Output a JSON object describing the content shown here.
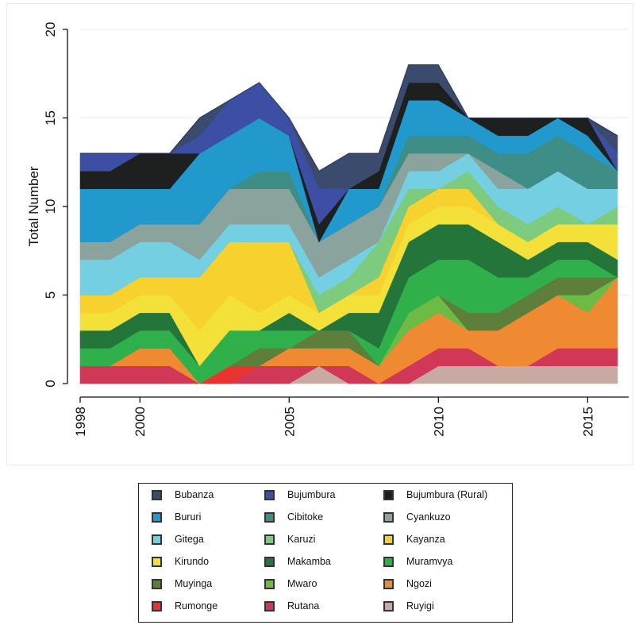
{
  "chart_data": {
    "type": "area",
    "stacked": true,
    "ylabel": "Total Number",
    "xlabel": "",
    "xlim": [
      1998,
      2016
    ],
    "ylim": [
      0,
      20
    ],
    "yticks": [
      0,
      5,
      10,
      15,
      20
    ],
    "xticks": [
      1998,
      2000,
      2005,
      2010,
      2015
    ],
    "grid": true,
    "legend_position": "bottom",
    "x": [
      1998,
      1999,
      2000,
      2001,
      2002,
      2003,
      2004,
      2005,
      2006,
      2007,
      2008,
      2009,
      2010,
      2011,
      2012,
      2013,
      2014,
      2015,
      2016
    ],
    "series": [
      {
        "name": "Ruyigi",
        "color": "#c9aaa3",
        "values": [
          0,
          0,
          0,
          0,
          0,
          0,
          0,
          0,
          1,
          0,
          0,
          0,
          1,
          1,
          1,
          1,
          1,
          1,
          1
        ]
      },
      {
        "name": "Rutana",
        "color": "#d13857",
        "values": [
          1,
          1,
          1,
          1,
          0,
          0,
          1,
          1,
          0,
          1,
          0,
          1,
          1,
          1,
          0,
          0,
          1,
          1,
          1
        ]
      },
      {
        "name": "Rumonge",
        "color": "#e8332e",
        "values": [
          0,
          0,
          0,
          0,
          0,
          1,
          0,
          0,
          0,
          0,
          0,
          0,
          0,
          0,
          0,
          0,
          0,
          0,
          0
        ]
      },
      {
        "name": "Ngozi",
        "color": "#f08a32",
        "values": [
          0,
          0,
          1,
          1,
          0,
          0,
          0,
          1,
          1,
          1,
          1,
          2,
          2,
          1,
          2,
          3,
          3,
          2,
          4
        ]
      },
      {
        "name": "Mwaro",
        "color": "#6bbb44",
        "values": [
          0,
          0,
          0,
          0,
          0,
          0,
          0,
          0,
          0,
          0,
          0,
          1,
          1,
          0,
          0,
          0,
          0,
          1,
          0
        ]
      },
      {
        "name": "Muyinga",
        "color": "#5e7f3c",
        "values": [
          0,
          0,
          0,
          0,
          0,
          0,
          1,
          0,
          1,
          1,
          0,
          0,
          0,
          1,
          1,
          1,
          1,
          1,
          0
        ]
      },
      {
        "name": "Muramvya",
        "color": "#2fb04a",
        "values": [
          1,
          1,
          1,
          1,
          1,
          2,
          1,
          1,
          0,
          0,
          1,
          2,
          2,
          3,
          2,
          1,
          1,
          1,
          0
        ]
      },
      {
        "name": "Makamba",
        "color": "#23753a",
        "values": [
          1,
          1,
          1,
          1,
          0,
          0,
          0,
          1,
          0,
          1,
          2,
          2,
          2,
          2,
          2,
          1,
          1,
          1,
          1
        ]
      },
      {
        "name": "Kirundo",
        "color": "#f3e13a",
        "values": [
          1,
          1,
          1,
          1,
          2,
          2,
          1,
          1,
          1,
          1,
          1,
          1,
          1,
          1,
          1,
          1,
          1,
          1,
          2
        ]
      },
      {
        "name": "Kayanza",
        "color": "#f7d12e",
        "values": [
          1,
          1,
          1,
          1,
          3,
          3,
          4,
          3,
          0,
          0,
          1,
          1,
          1,
          1,
          0,
          0,
          0,
          0,
          0
        ]
      },
      {
        "name": "Karuzi",
        "color": "#7ccb7f",
        "values": [
          0,
          0,
          0,
          0,
          0,
          0,
          0,
          0,
          1,
          1,
          2,
          1,
          0,
          1,
          1,
          1,
          1,
          0,
          1
        ]
      },
      {
        "name": "Gitega",
        "color": "#74cfe2",
        "values": [
          2,
          2,
          2,
          2,
          1,
          1,
          1,
          1,
          1,
          1,
          0,
          1,
          1,
          1,
          1,
          2,
          2,
          2,
          1
        ]
      },
      {
        "name": "Cyankuzo",
        "color": "#8aa39c",
        "values": [
          1,
          1,
          1,
          1,
          2,
          2,
          2,
          2,
          2,
          2,
          2,
          1,
          1,
          0,
          1,
          0,
          0,
          0,
          0
        ]
      },
      {
        "name": "Cibitoke",
        "color": "#3e8d86",
        "values": [
          0,
          0,
          0,
          0,
          0,
          0,
          1,
          1,
          0,
          0,
          0,
          1,
          1,
          1,
          1,
          2,
          2,
          2,
          1
        ]
      },
      {
        "name": "Bururi",
        "color": "#2199cc",
        "values": [
          3,
          3,
          2,
          2,
          4,
          3,
          3,
          2,
          0,
          2,
          1,
          2,
          2,
          1,
          1,
          1,
          1,
          1,
          0
        ]
      },
      {
        "name": "Bujumbura (Rural)",
        "color": "#1e1f1f",
        "values": [
          1,
          1,
          2,
          2,
          0,
          0,
          0,
          0,
          1,
          0,
          1,
          1,
          1,
          0,
          1,
          1,
          0,
          1,
          0
        ]
      },
      {
        "name": "Bujumbura",
        "color": "#3d4ea5",
        "values": [
          1,
          1,
          0,
          0,
          1,
          2,
          2,
          1,
          2,
          0,
          0,
          0,
          0,
          0,
          0,
          0,
          0,
          0,
          1
        ]
      },
      {
        "name": "Bubanza",
        "color": "#3a4b6e",
        "values": [
          0,
          0,
          0,
          0,
          1,
          0,
          0,
          0,
          1,
          2,
          1,
          1,
          1,
          0,
          0,
          0,
          0,
          0,
          1
        ]
      }
    ]
  },
  "legend": {
    "items": [
      {
        "label": "Bubanza",
        "color": "#3a4b6e"
      },
      {
        "label": "Bujumbura",
        "color": "#3d4ea5"
      },
      {
        "label": "Bujumbura (Rural)",
        "color": "#1e1f1f"
      },
      {
        "label": "Bururi",
        "color": "#2199cc"
      },
      {
        "label": "Cibitoke",
        "color": "#3e8d86"
      },
      {
        "label": "Cyankuzo",
        "color": "#8aa39c"
      },
      {
        "label": "Gitega",
        "color": "#74cfe2"
      },
      {
        "label": "Karuzi",
        "color": "#7ccb7f"
      },
      {
        "label": "Kayanza",
        "color": "#f7d12e"
      },
      {
        "label": "Kirundo",
        "color": "#f3e13a"
      },
      {
        "label": "Makamba",
        "color": "#23753a"
      },
      {
        "label": "Muramvya",
        "color": "#2fb04a"
      },
      {
        "label": "Muyinga",
        "color": "#5e7f3c"
      },
      {
        "label": "Mwaro",
        "color": "#6bbb44"
      },
      {
        "label": "Ngozi",
        "color": "#f08a32"
      },
      {
        "label": "Rumonge",
        "color": "#e8332e"
      },
      {
        "label": "Rutana",
        "color": "#d13857"
      },
      {
        "label": "Ruyigi",
        "color": "#c9aaa3"
      }
    ]
  }
}
